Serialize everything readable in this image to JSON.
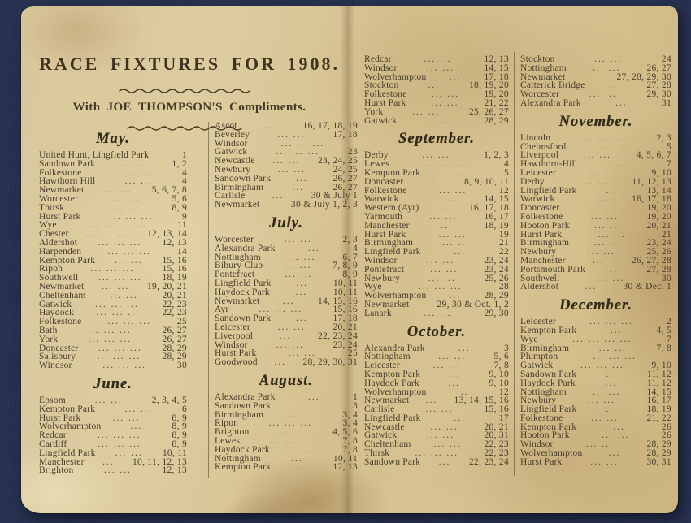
{
  "title": "RACE FIXTURES FOR 1908.",
  "subtitle": "With JOE THOMPSON'S Compliments.",
  "colors": {
    "paper": "#d9c89c",
    "ink": "#4a3f2c",
    "background": "#263050"
  },
  "columns": [
    [
      {
        "header": "May.",
        "rows": [
          [
            "United Hunt, Lingfield Park",
            "",
            "1"
          ],
          [
            "Sandown Park",
            "... ..",
            "1, 2"
          ],
          [
            "Folkestone",
            "... ... ...",
            "4"
          ],
          [
            "Hawthorn Hill",
            "... ...",
            "4"
          ],
          [
            "Newmarket",
            "... ...",
            "5, 6, 7, 8"
          ],
          [
            "Worcester",
            "... ...",
            "5, 6"
          ],
          [
            "Thirsk",
            "... ... ...",
            "8, 9"
          ],
          [
            "Hurst Park",
            "... ... ...",
            "9"
          ],
          [
            "Wye",
            "... ... ... ...",
            "11"
          ],
          [
            "Chester",
            "... ... ...",
            "12, 13, 14"
          ],
          [
            "Aldershot",
            "... ... ...",
            "12, 13"
          ],
          [
            "Harpenden",
            "... ... ...",
            "14"
          ],
          [
            "Kempton Park",
            "... ...",
            "15, 16"
          ],
          [
            "Ripon",
            "... ... ...",
            "15, 16"
          ],
          [
            "Southwell",
            "... ... ...",
            "18, 19"
          ],
          [
            "Newmarket",
            "... ...",
            "19, 20, 21"
          ],
          [
            "Cheltenham",
            "... ...",
            "20, 21"
          ],
          [
            "Gatwick",
            "... ... ...",
            "22, 23"
          ],
          [
            "Haydock",
            "... ... ...",
            "22, 23"
          ],
          [
            "Folkestone",
            "... ... ...",
            "25"
          ],
          [
            "Bath",
            "... ... ...",
            "26, 27"
          ],
          [
            "York",
            "... ... ...",
            "26, 27"
          ],
          [
            "Doncaster",
            "... ... ...",
            "28, 29"
          ],
          [
            "Salisbury",
            "... ... ...",
            "28, 29"
          ],
          [
            "Windsor",
            "... ... ...",
            "30"
          ]
        ]
      },
      {
        "header": "June.",
        "rows": [
          [
            "Epsom",
            "... ...",
            "2, 3, 4, 5"
          ],
          [
            "Kempton Park",
            "... ...",
            "6"
          ],
          [
            "Hurst Park",
            "... ...",
            "8, 9"
          ],
          [
            "Wolverhampton",
            "...",
            "8, 9"
          ],
          [
            "Redcar",
            "... ... ...",
            "8, 9"
          ],
          [
            "Cardiff",
            "... ... ...",
            "8, 9"
          ],
          [
            "Lingfield Park",
            "... ...",
            "10, 11"
          ],
          [
            "Manchester",
            "...",
            "10, 11, 12, 13"
          ],
          [
            "Brighton",
            "... ...",
            "12, 13"
          ]
        ]
      }
    ],
    [
      {
        "header": "",
        "rows": [
          [
            "Ascot",
            "...",
            "16, 17, 18, 19"
          ],
          [
            "Beverley",
            "... ...",
            "17, 18"
          ],
          [
            "Windsor",
            "... ... ...",
            ""
          ],
          [
            "Gatwick",
            "... ... ...",
            "23"
          ],
          [
            "Newcastle",
            "... ...",
            "23, 24, 25"
          ],
          [
            "Newbury",
            "... ...",
            "24, 25"
          ],
          [
            "Sandown Park",
            "...",
            "26, 27"
          ],
          [
            "Birmingham",
            "...",
            "26, 27"
          ],
          [
            "Carlisle",
            "...",
            "30 & July 1"
          ],
          [
            "Newmarket",
            "",
            "30 & July 1, 2, 3"
          ]
        ]
      },
      {
        "header": "July.",
        "rows": [
          [
            "Worcester",
            "... ...",
            "2, 3"
          ],
          [
            "Alexandra Park",
            "...",
            "4"
          ],
          [
            "Nottingham",
            "... ...",
            "6, 7"
          ],
          [
            "Bibury Club",
            "... ...",
            "7, 8, 9"
          ],
          [
            "Pontefract",
            "... ...",
            "8, 9"
          ],
          [
            "Lingfield Park",
            "...",
            "10, 11"
          ],
          [
            "Haydock Park",
            "...",
            "10, 11"
          ],
          [
            "Newmarket",
            "...",
            "14, 15, 16"
          ],
          [
            "Ayr",
            "... ... ...",
            "15, 16"
          ],
          [
            "Sandown Park",
            "...",
            "17, 18"
          ],
          [
            "Leicester",
            "... ...",
            "20, 21"
          ],
          [
            "Liverpool",
            "...",
            "22, 23, 24"
          ],
          [
            "Windsor",
            "... ...",
            "23, 24"
          ],
          [
            "Hurst Park",
            "... ...",
            "25"
          ],
          [
            "Goodwood",
            "...",
            "28, 29, 30, 31"
          ]
        ]
      },
      {
        "header": "August.",
        "rows": [
          [
            "Alexandra Park",
            "...",
            "1"
          ],
          [
            "Sandown Park",
            "...",
            "3"
          ],
          [
            "Birmingham",
            "... ...",
            "3, 4"
          ],
          [
            "Ripon",
            "... ... ...",
            "3, 4"
          ],
          [
            "Brighton",
            "... ...",
            "4, 5, 6"
          ],
          [
            "Lewes",
            "... ... ...",
            "7, 8"
          ],
          [
            "Haydock Park",
            "...",
            "7, 8"
          ],
          [
            "Nottingham",
            "...",
            "10, 11"
          ],
          [
            "Kempton Park",
            "...",
            "12, 13"
          ]
        ]
      }
    ],
    [
      {
        "header": "",
        "rows": [
          [
            "Redcar",
            "... ...",
            "12, 13"
          ],
          [
            "Windsor",
            "... ...",
            "14, 15"
          ],
          [
            "Wolverhampton",
            "...",
            "17, 18"
          ],
          [
            "Stockton",
            "...",
            "18, 19, 20"
          ],
          [
            "Folkestone",
            "... ...",
            "19, 20"
          ],
          [
            "Hurst Park",
            "... ...",
            "21, 22"
          ],
          [
            "York",
            "... ...",
            "25, 26, 27"
          ],
          [
            "Gatwick",
            "... ...",
            "28, 29"
          ]
        ]
      },
      {
        "header": "September.",
        "rows": [
          [
            "Derby",
            "... ...",
            "1, 2, 3"
          ],
          [
            "Lewes",
            "... ... ...",
            "4"
          ],
          [
            "Kempton Park",
            "...",
            "5"
          ],
          [
            "Doncaster",
            "...",
            "8, 9, 10, 11"
          ],
          [
            "Folkestone",
            "... ...",
            "12"
          ],
          [
            "Warwick",
            "... ...",
            "14, 15"
          ],
          [
            "Western (Ayr)",
            "...",
            "16, 17, 18"
          ],
          [
            "Yarmouth",
            "... ...",
            "16, 17"
          ],
          [
            "Manchester",
            "...",
            "18, 19"
          ],
          [
            "Hurst Park",
            "... ...",
            "19"
          ],
          [
            "Birmingham",
            "... ...",
            "21"
          ],
          [
            "Lingfield Park",
            "...",
            "22"
          ],
          [
            "Windsor",
            "... ...",
            "23, 24"
          ],
          [
            "Pontefract",
            "... ...",
            "23, 24"
          ],
          [
            "Newbury",
            "... ...",
            "25, 26"
          ],
          [
            "Wye",
            "... ... ...",
            "28"
          ],
          [
            "Wolverhampton",
            "...",
            "28, 29"
          ],
          [
            "Newmarket",
            "",
            "29, 30 & Oct. 1, 2"
          ],
          [
            "Lanark",
            "... ...",
            "29, 30"
          ]
        ]
      },
      {
        "header": "October.",
        "rows": [
          [
            "Alexandra Park",
            "...",
            "3"
          ],
          [
            "Nottingham",
            "... ...",
            "5, 6"
          ],
          [
            "Leicester",
            "... ...",
            "7, 8"
          ],
          [
            "Kempton Park",
            "...",
            "9, 10"
          ],
          [
            "Haydock Park",
            "...",
            "9, 10"
          ],
          [
            "Wolverhampton",
            "...",
            "12"
          ],
          [
            "Newmarket",
            "...",
            "13, 14, 15, 16"
          ],
          [
            "Carlisle",
            "... ...",
            "15, 16"
          ],
          [
            "Lingfield Park",
            "...",
            "17"
          ],
          [
            "Newcastle",
            "... ...",
            "20, 21"
          ],
          [
            "Gatwick",
            "... ...",
            "20, 31"
          ],
          [
            "Cheltenham",
            "... ...",
            "22, 23"
          ],
          [
            "Thirsk",
            "... ... ...",
            "22, 23"
          ],
          [
            "Sandown Park",
            "...",
            "22, 23, 24"
          ]
        ]
      }
    ],
    [
      {
        "header": "",
        "rows": [
          [
            "Stockton",
            "... ...",
            "24"
          ],
          [
            "Nottingham",
            "... ...",
            "26, 27"
          ],
          [
            "Newmarket",
            "",
            "27, 28, 29, 30"
          ],
          [
            "Catterick Bridge",
            "...",
            "27, 28"
          ],
          [
            "Worcester",
            "... ...",
            "29, 30"
          ],
          [
            "Alexandra Park",
            "...",
            "31"
          ]
        ]
      },
      {
        "header": "November.",
        "rows": [
          [
            "Lincoln",
            "... ... ...",
            "2, 3"
          ],
          [
            "Chelmsford",
            "... ...",
            "5"
          ],
          [
            "Liverpool",
            "... ...",
            "4, 5, 6, 7"
          ],
          [
            "Hawthorn-Hill",
            "...",
            "7"
          ],
          [
            "Leicester",
            "... ...",
            "9, 10"
          ],
          [
            "Derby",
            "... ... ...",
            "11, 12, 13"
          ],
          [
            "Lingfield Park",
            "...",
            "13, 14"
          ],
          [
            "Warwick",
            "... ...",
            "16, 17, 18"
          ],
          [
            "Doncaster",
            "... ...",
            "19, 20"
          ],
          [
            "Folkestone",
            "... ...",
            "19, 20"
          ],
          [
            "Hooton Park",
            "... ...",
            "20, 21"
          ],
          [
            "Hurst Park",
            "... ...",
            "21"
          ],
          [
            "Birmingham",
            "... ...",
            "23, 24"
          ],
          [
            "Newbury",
            "... ...",
            "25, 26"
          ],
          [
            "Manchester",
            "...",
            "26, 27, 28"
          ],
          [
            "Portsmouth Park",
            "...",
            "27, 28"
          ],
          [
            "Southwell",
            "... ...",
            "30"
          ],
          [
            "Aldershot",
            "...",
            "30 & Dec. 1"
          ]
        ]
      },
      {
        "header": "December.",
        "rows": [
          [
            "Leicester",
            "... ... ...",
            "2"
          ],
          [
            "Kempton Park",
            "...",
            "4, 5"
          ],
          [
            "Wye",
            "... ... ... ...",
            "7"
          ],
          [
            "Birmingham",
            "... ...",
            "7, 8"
          ],
          [
            "Plumpton",
            "... ... ...",
            ""
          ],
          [
            "Gatwick",
            "... ... ...",
            "9, 10"
          ],
          [
            "Sandown Park",
            "...",
            "11, 12"
          ],
          [
            "Haydock Park",
            "...",
            "11, 12"
          ],
          [
            "Nottingham",
            "... ...",
            "14, 15"
          ],
          [
            "Newbury",
            "... ...",
            "16, 17"
          ],
          [
            "Lingfield Park",
            "...",
            "18, 19"
          ],
          [
            "Folkestone",
            "... ...",
            "21, 22"
          ],
          [
            "Kempton Park",
            "...",
            "26"
          ],
          [
            "Hooton Park",
            "... ...",
            "26"
          ],
          [
            "Windsor",
            "... ...",
            "28, 29"
          ],
          [
            "Wolverhampton",
            "...",
            "28, 29"
          ],
          [
            "Hurst Park",
            "... ...",
            "30, 31"
          ]
        ]
      }
    ]
  ]
}
